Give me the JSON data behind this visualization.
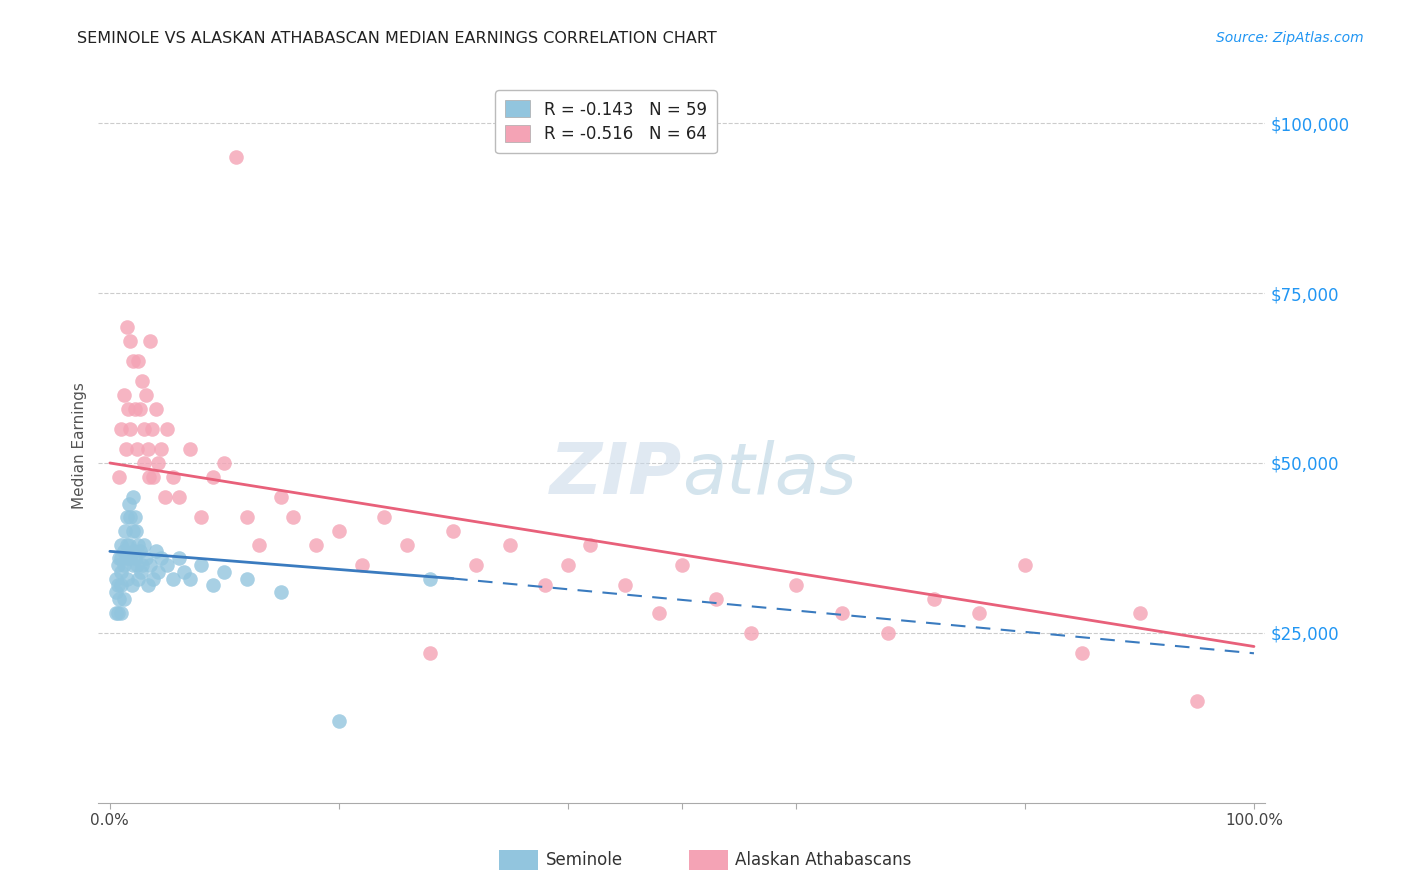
{
  "title": "SEMINOLE VS ALASKAN ATHABASCAN MEDIAN EARNINGS CORRELATION CHART",
  "source": "Source: ZipAtlas.com",
  "ylabel": "Median Earnings",
  "seminole_color": "#92c5de",
  "athabascan_color": "#f4a3b5",
  "seminole_line_color": "#3a7bbf",
  "athabascan_line_color": "#e8607a",
  "watermark_text": "ZIPatlas",
  "legend_label_1": "R = -0.143   N = 59",
  "legend_label_2": "R = -0.516   N = 64",
  "legend_r1": "-0.143",
  "legend_n1": "59",
  "legend_r2": "-0.516",
  "legend_n2": "64",
  "bottom_label_1": "Seminole",
  "bottom_label_2": "Alaskan Athabascans",
  "seminole_x": [
    0.005,
    0.005,
    0.005,
    0.007,
    0.007,
    0.007,
    0.008,
    0.008,
    0.01,
    0.01,
    0.01,
    0.01,
    0.01,
    0.012,
    0.012,
    0.012,
    0.013,
    0.014,
    0.015,
    0.015,
    0.015,
    0.017,
    0.017,
    0.018,
    0.018,
    0.019,
    0.02,
    0.02,
    0.02,
    0.021,
    0.022,
    0.022,
    0.023,
    0.024,
    0.025,
    0.025,
    0.026,
    0.027,
    0.028,
    0.03,
    0.032,
    0.033,
    0.035,
    0.038,
    0.04,
    0.042,
    0.045,
    0.05,
    0.055,
    0.06,
    0.065,
    0.07,
    0.08,
    0.09,
    0.1,
    0.12,
    0.15,
    0.2,
    0.28
  ],
  "seminole_y": [
    33000,
    31000,
    28000,
    35000,
    32000,
    28000,
    36000,
    30000,
    38000,
    36000,
    34000,
    32000,
    28000,
    37000,
    35000,
    30000,
    40000,
    36000,
    42000,
    38000,
    33000,
    44000,
    38000,
    42000,
    36000,
    32000,
    45000,
    40000,
    35000,
    37000,
    42000,
    36000,
    40000,
    35000,
    38000,
    33000,
    37000,
    34000,
    35000,
    38000,
    36000,
    32000,
    35000,
    33000,
    37000,
    34000,
    36000,
    35000,
    33000,
    36000,
    34000,
    33000,
    35000,
    32000,
    34000,
    33000,
    31000,
    12000,
    33000
  ],
  "athabascan_x": [
    0.008,
    0.01,
    0.012,
    0.014,
    0.015,
    0.016,
    0.018,
    0.018,
    0.02,
    0.022,
    0.024,
    0.025,
    0.026,
    0.028,
    0.03,
    0.03,
    0.032,
    0.033,
    0.034,
    0.035,
    0.037,
    0.038,
    0.04,
    0.042,
    0.045,
    0.048,
    0.05,
    0.055,
    0.06,
    0.07,
    0.08,
    0.09,
    0.1,
    0.11,
    0.12,
    0.13,
    0.15,
    0.16,
    0.18,
    0.2,
    0.22,
    0.24,
    0.26,
    0.28,
    0.3,
    0.32,
    0.35,
    0.38,
    0.4,
    0.42,
    0.45,
    0.48,
    0.5,
    0.53,
    0.56,
    0.6,
    0.64,
    0.68,
    0.72,
    0.76,
    0.8,
    0.85,
    0.9,
    0.95
  ],
  "athabascan_y": [
    48000,
    55000,
    60000,
    52000,
    70000,
    58000,
    68000,
    55000,
    65000,
    58000,
    52000,
    65000,
    58000,
    62000,
    55000,
    50000,
    60000,
    52000,
    48000,
    68000,
    55000,
    48000,
    58000,
    50000,
    52000,
    45000,
    55000,
    48000,
    45000,
    52000,
    42000,
    48000,
    50000,
    95000,
    42000,
    38000,
    45000,
    42000,
    38000,
    40000,
    35000,
    42000,
    38000,
    22000,
    40000,
    35000,
    38000,
    32000,
    35000,
    38000,
    32000,
    28000,
    35000,
    30000,
    25000,
    32000,
    28000,
    25000,
    30000,
    28000,
    35000,
    22000,
    28000,
    15000
  ],
  "xlim": [
    -0.01,
    1.01
  ],
  "ylim": [
    0,
    105000
  ],
  "yticks": [
    0,
    25000,
    50000,
    75000,
    100000
  ],
  "ytick_labels": [
    "",
    "$25,000",
    "$50,000",
    "$75,000",
    "$100,000"
  ]
}
